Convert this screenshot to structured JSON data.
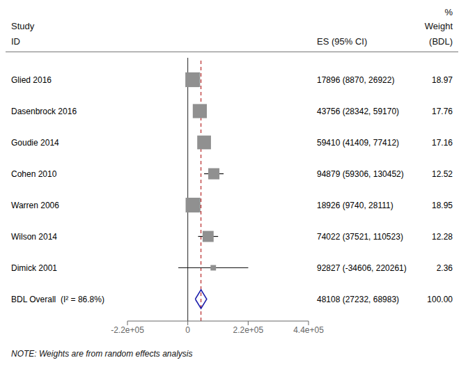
{
  "chart_data": {
    "type": "forest",
    "categories": [
      "Glied 2016",
      "Dasenbrock 2016",
      "Goudie 2014",
      "Cohen 2010",
      "Warren 2006",
      "Wilson 2014",
      "Dimick 2001"
    ],
    "values": [
      17896,
      43756,
      59410,
      94879,
      18926,
      74022,
      92827
    ],
    "ci_lo": [
      8870,
      28342,
      41409,
      59306,
      9740,
      37521,
      -34606
    ],
    "ci_hi": [
      26922,
      59170,
      77412,
      130452,
      28111,
      110523,
      220261
    ],
    "weights": [
      18.97,
      17.76,
      17.16,
      12.52,
      18.95,
      12.28,
      2.36
    ],
    "value_labels": [
      "17896 (8870, 26922)",
      "43756 (28342, 59170)",
      "59410 (41409, 77412)",
      "94879 (59306, 130452)",
      "18926 (9740, 28111)",
      "74022 (37521, 110523)",
      "92827 (-34606, 220261)"
    ],
    "weight_labels": [
      "18.97",
      "17.76",
      "17.16",
      "12.52",
      "18.95",
      "12.28",
      "2.36"
    ],
    "overall": {
      "category": "BDL Overall  (I² = 86.8%)",
      "value": 48108,
      "ci_lo": 27232,
      "ci_hi": 68983,
      "value_label": "48108 (27232, 68983)",
      "weight_label": "100.00",
      "color": "#1a1aaa"
    },
    "headers": {
      "percent": "%",
      "study": "Study",
      "weight": "Weight",
      "id": "ID",
      "es": "ES (95% CI)",
      "bdl": "(BDL)"
    },
    "note": "NOTE: Weights are from random effects analysis",
    "xlim": [
      -220000,
      440000
    ],
    "xticks": [
      {
        "value": -220000,
        "label": "-2.2e+05"
      },
      0,
      {
        "value": 220000,
        "label": "2.2e+05"
      },
      {
        "value": 440000,
        "label": "4.4e+05"
      }
    ],
    "reference_lines": [
      {
        "x": 0,
        "color": "#222222"
      },
      {
        "x": 48108,
        "color": "#aa0000",
        "line_style": "dashed"
      }
    ],
    "color": "#909090",
    "ci_color": "#111111",
    "grid": false
  }
}
